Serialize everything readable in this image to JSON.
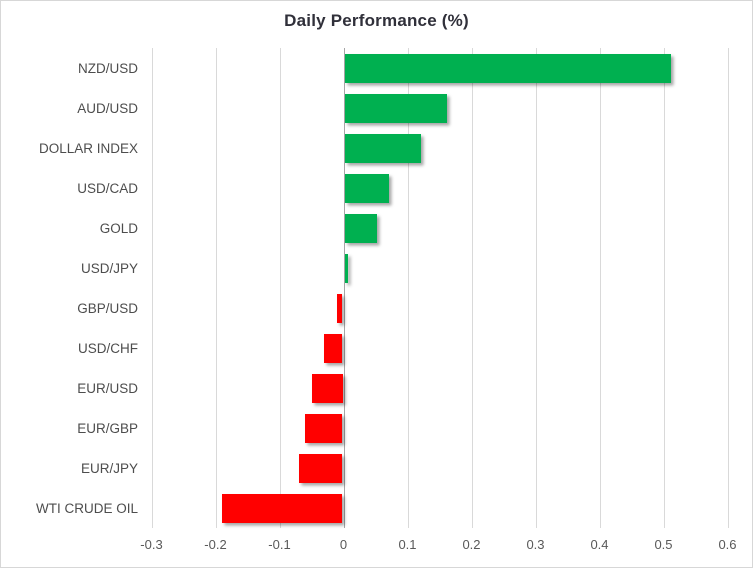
{
  "window": {
    "background": "#FFFFFF",
    "border_color": "#D7D7D7"
  },
  "chart_data": {
    "type": "bar",
    "orientation": "horizontal",
    "title": "Daily Performance (%)",
    "categories": [
      "NZD/USD",
      "AUD/USD",
      "DOLLAR INDEX",
      "USD/CAD",
      "GOLD",
      "USD/JPY",
      "GBP/USD",
      "USD/CHF",
      "EUR/USD",
      "EUR/GBP",
      "EUR/JPY",
      "WTI CRUDE OIL"
    ],
    "values": [
      0.51,
      0.16,
      0.12,
      0.07,
      0.05,
      0.005,
      -0.01,
      -0.03,
      -0.05,
      -0.06,
      -0.07,
      -0.19
    ],
    "xlabel": "",
    "ylabel": "",
    "xlim": [
      -0.3,
      0.6
    ],
    "x_ticks": [
      -0.3,
      -0.2,
      -0.1,
      0,
      0.1,
      0.2,
      0.3,
      0.4,
      0.5,
      0.6
    ],
    "x_tick_labels": [
      "-0.3",
      "-0.2",
      "-0.1",
      "0",
      "0.1",
      "0.2",
      "0.3",
      "0.4",
      "0.5",
      "0.6"
    ],
    "grid": true,
    "legend": false,
    "colors": {
      "positive": "#00B050",
      "negative": "#FF0000",
      "gridline": "#D9D9D9",
      "zero_axis": "#A6A6A6",
      "title_text": "#30303A",
      "label_text": "#4D4D4D",
      "tick_text": "#595959"
    }
  }
}
